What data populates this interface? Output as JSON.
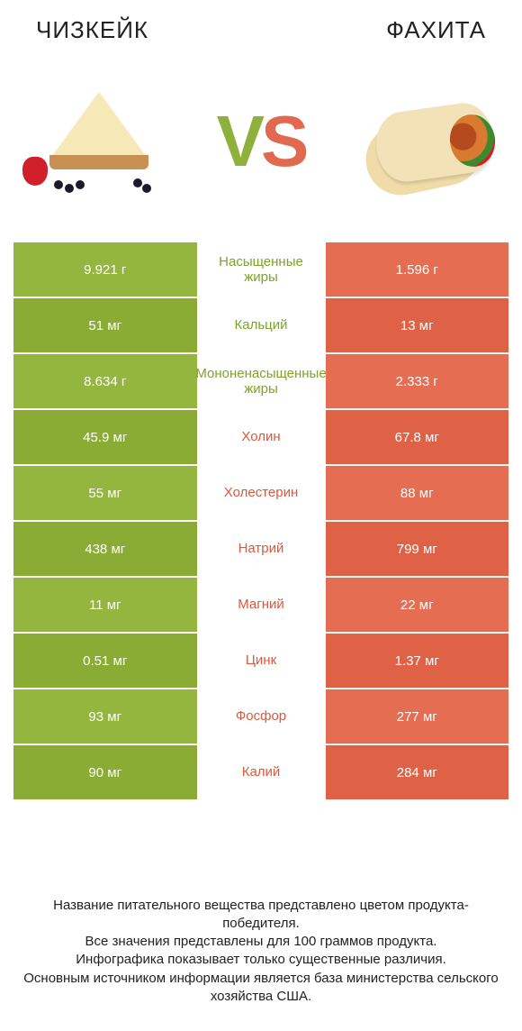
{
  "header": {
    "left_title": "ЧИЗКЕЙК",
    "right_title": "ФАХИТА"
  },
  "hero": {
    "vs_letter_v": "V",
    "vs_letter_s": "S"
  },
  "colors": {
    "green": "#95b63e",
    "green_alt": "#8aac34",
    "orange": "#e56d51",
    "orange_alt": "#df6247",
    "mid_text_green": "#7ea22d",
    "mid_text_orange": "#d8593e"
  },
  "comparison": {
    "type": "table",
    "rows": [
      {
        "left": "9.921 г",
        "label": "Насыщенные жиры",
        "right": "1.596 г",
        "winner": "left"
      },
      {
        "left": "51 мг",
        "label": "Кальций",
        "right": "13 мг",
        "winner": "left"
      },
      {
        "left": "8.634 г",
        "label": "Мононенасыщенные жиры",
        "right": "2.333 г",
        "winner": "left"
      },
      {
        "left": "45.9 мг",
        "label": "Холин",
        "right": "67.8 мг",
        "winner": "right"
      },
      {
        "left": "55 мг",
        "label": "Холестерин",
        "right": "88 мг",
        "winner": "right"
      },
      {
        "left": "438 мг",
        "label": "Натрий",
        "right": "799 мг",
        "winner": "right"
      },
      {
        "left": "11 мг",
        "label": "Магний",
        "right": "22 мг",
        "winner": "right"
      },
      {
        "left": "0.51 мг",
        "label": "Цинк",
        "right": "1.37 мг",
        "winner": "right"
      },
      {
        "left": "93 мг",
        "label": "Фосфор",
        "right": "277 мг",
        "winner": "right"
      },
      {
        "left": "90 мг",
        "label": "Калий",
        "right": "284 мг",
        "winner": "right"
      }
    ]
  },
  "footer": {
    "line1": "Название питательного вещества представлено цветом продукта-победителя.",
    "line2": "Все значения представлены для 100 граммов продукта.",
    "line3": "Инфографика показывает только существенные различия.",
    "line4": "Основным источником информации является база министерства сельского хозяйства США."
  }
}
